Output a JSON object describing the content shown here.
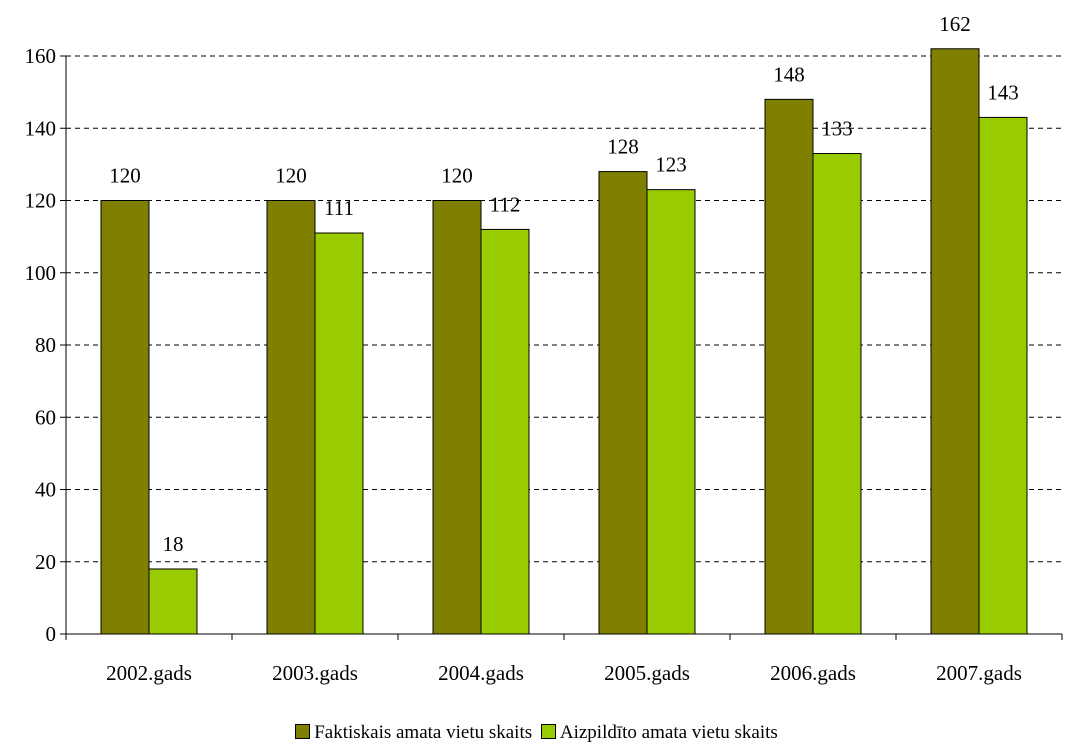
{
  "chart_data": {
    "type": "bar",
    "categories": [
      "2002.gads",
      "2003.gads",
      "2004.gads",
      "2005.gads",
      "2006.gads",
      "2007.gads"
    ],
    "series": [
      {
        "name": "Faktiskais amata vietu skaits",
        "values": [
          120,
          120,
          120,
          128,
          148,
          162
        ],
        "color": "#808000"
      },
      {
        "name": "Aizpildīto amata vietu skaits",
        "values": [
          18,
          111,
          112,
          123,
          133,
          143
        ],
        "color": "#99cc00"
      }
    ],
    "yticks": [
      "0",
      "20",
      "40",
      "60",
      "80",
      "100",
      "120",
      "140",
      "160"
    ],
    "ylim": [
      0,
      160
    ],
    "grid": true,
    "grid_style": "dashed",
    "legend_position": "bottom",
    "title": "",
    "xlabel": "",
    "ylabel": ""
  }
}
